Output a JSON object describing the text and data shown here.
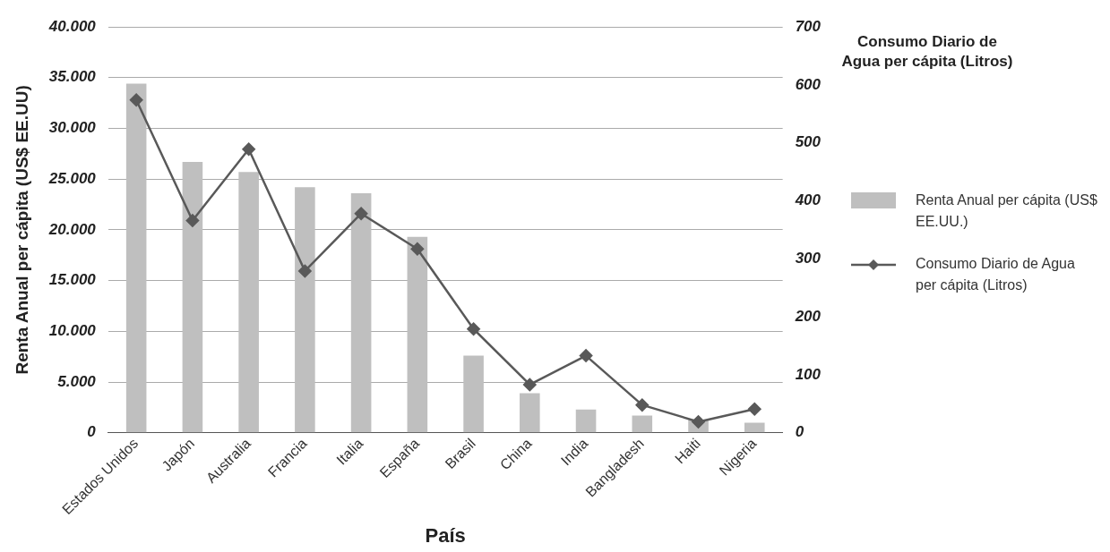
{
  "chart_data": {
    "type": "bar",
    "xlabel": "País",
    "ylabel": "Renta Anual per cápita (US$ EE.UU)",
    "y2label": "Consumo Diario de Agua per cápita (Litros)",
    "categories": [
      "Estados Unidos",
      "Japón",
      "Australia",
      "Francia",
      "Italia",
      "España",
      "Brasil",
      "China",
      "India",
      "Bangladesh",
      "Haiti",
      "Nigeria"
    ],
    "series": [
      {
        "name": "Renta Anual per cápita (US$ EE.UU.)",
        "color": "#bfbfbf",
        "values": [
          34400,
          26700,
          25700,
          24200,
          23600,
          19300,
          7600,
          3900,
          2300,
          1700,
          1300,
          1000
        ]
      },
      {
        "name": "Consumo Diario de Agua per cápita (Litros)",
        "type": "line",
        "axis": "y2",
        "color": "#595959",
        "marker": "diamond",
        "values": [
          574,
          366,
          489,
          279,
          378,
          317,
          179,
          83,
          133,
          48,
          19,
          41
        ]
      }
    ],
    "ylim": [
      0,
      40000
    ],
    "yticks": [
      {
        "value": 0,
        "label": "0"
      },
      {
        "value": 5000,
        "label": "5.000"
      },
      {
        "value": 10000,
        "label": "10.000"
      },
      {
        "value": 15000,
        "label": "15.000"
      },
      {
        "value": 20000,
        "label": "20.000"
      },
      {
        "value": 25000,
        "label": "25.000"
      },
      {
        "value": 30000,
        "label": "30.000"
      },
      {
        "value": 35000,
        "label": "35.000"
      },
      {
        "value": 40000,
        "label": "40.000"
      }
    ],
    "y2lim": [
      0,
      700
    ],
    "y2ticks": [
      0,
      100,
      200,
      300,
      400,
      500,
      600,
      700
    ],
    "grid": "y",
    "legend": "right"
  }
}
